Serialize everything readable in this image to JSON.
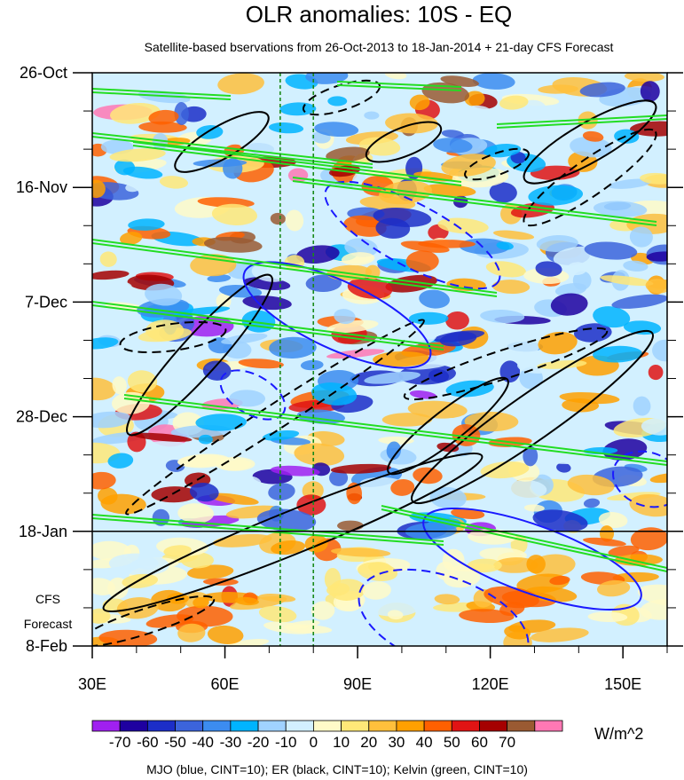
{
  "chart_data": {
    "type": "heatmap",
    "title": "OLR anomalies: 10S - EQ",
    "subtitle": "Satellite-based bservations from 26-Oct-2013 to 18-Jan-2014 + 21-day CFS Forecast",
    "x_axis": {
      "range": [
        30,
        160
      ],
      "ticks": [
        30,
        60,
        90,
        120,
        150
      ],
      "tick_labels": [
        "30E",
        "60E",
        "90E",
        "120E",
        "150E"
      ]
    },
    "y_axis": {
      "range": [
        "2013-10-26",
        "2014-02-08"
      ],
      "direction": "time increases downward",
      "ticks": [
        "2013-10-26",
        "2013-11-16",
        "2013-12-07",
        "2013-12-28",
        "2014-01-18",
        "2014-02-08"
      ],
      "tick_labels": [
        "26-Oct",
        "16-Nov",
        "7-Dec",
        "28-Dec",
        "18-Jan",
        "8-Feb"
      ]
    },
    "forecast_label": [
      "CFS",
      "Forecast"
    ],
    "forecast_start": "2014-01-18",
    "reference_longitudes": [
      72.5,
      80
    ],
    "colorbar": {
      "levels": [
        -70,
        -60,
        -50,
        -40,
        -30,
        -20,
        -10,
        0,
        10,
        20,
        30,
        40,
        50,
        60,
        70
      ],
      "labels": [
        "-70",
        "-60",
        "-50",
        "-40",
        "-30",
        "-20",
        "-10",
        "0",
        "10",
        "20",
        "30",
        "40",
        "50",
        "60",
        "70"
      ],
      "colors": [
        "#a020f0",
        "#1e00a0",
        "#1c2ec8",
        "#3c64dc",
        "#3c8cf0",
        "#00b4ff",
        "#a0d2ff",
        "#d2f0ff",
        "#fffac8",
        "#ffe878",
        "#ffc03c",
        "#ffa000",
        "#ff6000",
        "#e11414",
        "#a50000",
        "#9a5a32",
        "#ff78b4"
      ],
      "units": "W/m^2"
    },
    "contour_sets": [
      {
        "field": "MJO",
        "color": "#1a1aff",
        "cint": 10
      },
      {
        "field": "ER",
        "color": "#000000",
        "cint": 10
      },
      {
        "field": "Kelvin",
        "color": "#22dd22",
        "cint": 10
      }
    ],
    "footnote": "MJO (blue, CINT=10); ER (black, CINT=10); Kelvin (green, CINT=10)"
  }
}
